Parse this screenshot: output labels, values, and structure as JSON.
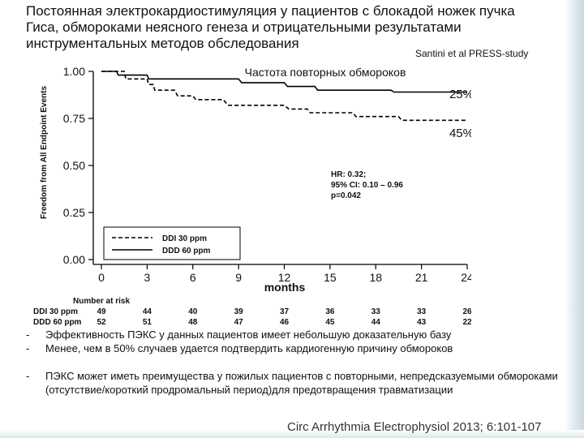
{
  "title_lines": [
    "Постоянная электрокардиостимуляция у пациентов с   блокадой ножек пучка",
    "Гиса, обмороками неясного генеза и отрицательными результатами",
    "инструментальных методов обследования"
  ],
  "citation": "Santini et al PRESS-study",
  "chart_data": {
    "type": "line",
    "title": "Частота повторных обмороков",
    "xlabel": "months",
    "ylabel": "Freedom from All Endpoint Events",
    "x_ticks": [
      "0",
      "3",
      "6",
      "9",
      "12",
      "15",
      "18",
      "21",
      "24"
    ],
    "y_ticks": [
      "0.00",
      "0.25",
      "0.50",
      "0.75",
      "1.00"
    ],
    "xlim": [
      0,
      24
    ],
    "ylim": [
      0,
      1
    ],
    "grid": false,
    "legend_placement": "lower-left",
    "series": [
      {
        "name": "DDI 30 ppm",
        "style": "dashed",
        "color": "#000000",
        "points": [
          [
            0,
            1.0
          ],
          [
            1.5,
            1.0
          ],
          [
            1.6,
            0.96
          ],
          [
            3.0,
            0.96
          ],
          [
            3.1,
            0.93
          ],
          [
            3.4,
            0.93
          ],
          [
            3.5,
            0.9
          ],
          [
            4.8,
            0.9
          ],
          [
            5.0,
            0.87
          ],
          [
            6.0,
            0.87
          ],
          [
            6.2,
            0.85
          ],
          [
            8.0,
            0.85
          ],
          [
            8.3,
            0.82
          ],
          [
            12.0,
            0.82
          ],
          [
            12.3,
            0.8
          ],
          [
            13.5,
            0.8
          ],
          [
            13.7,
            0.78
          ],
          [
            16.5,
            0.78
          ],
          [
            16.7,
            0.76
          ],
          [
            19.5,
            0.76
          ],
          [
            19.7,
            0.74
          ],
          [
            24.0,
            0.74
          ]
        ]
      },
      {
        "name": "DDD 60 ppm",
        "style": "solid",
        "color": "#000000",
        "points": [
          [
            0,
            1.0
          ],
          [
            1.0,
            1.0
          ],
          [
            1.1,
            0.98
          ],
          [
            3.0,
            0.98
          ],
          [
            3.1,
            0.96
          ],
          [
            9.0,
            0.96
          ],
          [
            9.2,
            0.94
          ],
          [
            12.0,
            0.94
          ],
          [
            12.2,
            0.92
          ],
          [
            14.0,
            0.92
          ],
          [
            14.2,
            0.9
          ],
          [
            19.0,
            0.9
          ],
          [
            19.2,
            0.89
          ],
          [
            24.0,
            0.89
          ]
        ]
      }
    ],
    "annotations": [
      {
        "text": "25%"
      },
      {
        "text": "45%"
      },
      {
        "text_lines": [
          "HR: 0.32;",
          "95% CI: 0.10 – 0.96",
          "p=0.042"
        ]
      }
    ],
    "risk_table": {
      "title": "Number at risk",
      "rows": [
        {
          "label": "DDI 30 ppm",
          "values": [
            "49",
            "44",
            "40",
            "39",
            "37",
            "36",
            "33",
            "33",
            "26"
          ]
        },
        {
          "label": "DDD 60 ppm",
          "values": [
            "52",
            "51",
            "48",
            "47",
            "46",
            "45",
            "44",
            "43",
            "22"
          ]
        }
      ]
    }
  },
  "bullets": [
    {
      "dash": "-",
      "text": "Эффективность  ПЭКС у данных пациентов имеет небольшую доказательную базу"
    },
    {
      "dash": "-",
      "text": "Менее, чем в 50% случаев удается подтвердить кардиогенную причину обмороков"
    },
    {
      "dash": "-",
      "text": "ПЭКС может иметь преимущества у пожилых пациентов с повторными, непредсказуемыми обмороками (отсутствие/короткий продромальный период)для предотвращения травматизации"
    }
  ],
  "footer_reference": "Circ Arrhythmia Electrophysiol 2013; 6:101-107"
}
